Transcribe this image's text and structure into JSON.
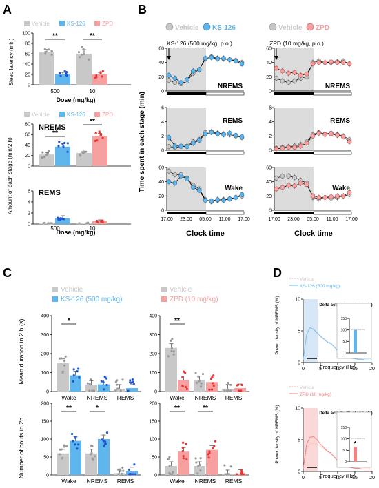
{
  "colors": {
    "vehicle": "#c8c8c8",
    "vehicle_dot": "#9a9a9a",
    "ks126": "#5fb6ec",
    "ks126_dot": "#1f55d6",
    "zpd": "#f7a0a0",
    "zpd_dot": "#ee3333",
    "dark_shade": "#dcdcdc",
    "blue_shade": "#d6e8f7",
    "red_shade": "#fbd8d8"
  },
  "panels": {
    "A": {
      "label": "A",
      "legend": [
        "Vehicle",
        "KS-126",
        "ZPD"
      ],
      "top": {
        "ylabel": "Sleep latency (min)",
        "xlabel": "Dose (mg/kg)",
        "ticks": [
          "0",
          "20",
          "40",
          "60",
          "80",
          "100"
        ],
        "groups": [
          "500",
          "10"
        ],
        "sig": [
          "**",
          "**"
        ]
      },
      "bottom": {
        "ylabel": "Amount of each stage (min/2 h)",
        "xlabel": "Dose (mg/kg)",
        "nrems_label": "NREMS",
        "rems_label": "REMS",
        "nrems_ticks": [
          "0",
          "20",
          "40",
          "60",
          "80"
        ],
        "rems_ticks": [
          "0",
          "2",
          "4",
          "6"
        ],
        "groups": [
          "500",
          "10"
        ],
        "sig": [
          "**",
          "**"
        ]
      }
    },
    "B": {
      "label": "B",
      "ylabel": "Time spent in each stage (min)",
      "xlabel": "Clock time",
      "legend_left": [
        "Vehicle",
        "KS-126"
      ],
      "legend_right": [
        "Vehicle",
        "ZPD"
      ],
      "title_left": "KS-126 (500 mg/kg, p.o.)",
      "title_right": "ZPD (10 mg/kg, p.o.)",
      "stage_labels": [
        "NREMS",
        "REMS",
        "Wake"
      ],
      "nrems_ticks": [
        "0",
        "20",
        "40",
        "60"
      ],
      "rems_ticks": [
        "0",
        "2",
        "4",
        "6"
      ],
      "wake_ticks": [
        "0",
        "20",
        "40",
        "60"
      ],
      "x_ticks": [
        "17:00",
        "23:00",
        "05:00",
        "11:00",
        "17:00"
      ]
    },
    "C": {
      "label": "C",
      "legend_left": [
        "Vehicle",
        "KS-126 (500 mg/kg)"
      ],
      "legend_right": [
        "Vehicle",
        "ZPD (10 mg/kg)"
      ],
      "top_ylabel": "Mean duration in 2 h (s)",
      "bottom_ylabel": "Number of bouts in 2h",
      "top_ticks": [
        "0",
        "100",
        "200",
        "300",
        "400"
      ],
      "bottom_ticks": [
        "0",
        "50",
        "100",
        "150",
        "200"
      ],
      "categories": [
        "Wake",
        "NREMS",
        "REMS"
      ],
      "sig_top_left": [
        "*"
      ],
      "sig_top_right": [
        "**"
      ],
      "sig_bottom_left": [
        "**",
        "*"
      ],
      "sig_bottom_right": [
        "**",
        "**"
      ]
    },
    "D": {
      "label": "D",
      "legend_top": [
        "Vehicle",
        "KS-126 (500 mg/kg)"
      ],
      "legend_bottom": [
        "Vehicle",
        "ZPD (10 mg/kg)"
      ],
      "ylabel": "Power density of NREMS (%)",
      "xlabel": "Frequency (Hz)",
      "y_ticks": [
        "0",
        "5",
        "10"
      ],
      "x_ticks": [
        "0",
        "5",
        "10",
        "15",
        "20"
      ],
      "inset_title": "Delta activity (% of vehicle)",
      "inset_ticks": [
        "0",
        "50",
        "100",
        "150"
      ],
      "inset_sig": "*"
    }
  },
  "chart_data": [
    {
      "type": "bar",
      "panel": "A-top",
      "ylabel": "Sleep latency (min)",
      "xlabel": "Dose (mg/kg)",
      "categories": [
        "500",
        "10"
      ],
      "ylim": [
        0,
        100
      ],
      "series": [
        {
          "name": "Vehicle",
          "values": [
            63,
            60
          ]
        },
        {
          "name": "KS-126",
          "values": [
            20,
            null
          ]
        },
        {
          "name": "ZPD",
          "values": [
            null,
            20
          ]
        }
      ]
    },
    {
      "type": "bar",
      "panel": "A-bottom-NREMS",
      "ylabel": "Amount of each stage (min/2 h)",
      "categories": [
        "500",
        "10"
      ],
      "ylim": [
        0,
        80
      ],
      "series": [
        {
          "name": "Vehicle",
          "values": [
            22,
            25
          ]
        },
        {
          "name": "KS-126",
          "values": [
            37,
            null
          ]
        },
        {
          "name": "ZPD",
          "values": [
            null,
            57
          ]
        }
      ]
    },
    {
      "type": "bar",
      "panel": "A-bottom-REMS",
      "categories": [
        "500",
        "10"
      ],
      "ylim": [
        0,
        6
      ],
      "series": [
        {
          "name": "Vehicle",
          "values": [
            0.1,
            0.1
          ]
        },
        {
          "name": "KS-126",
          "values": [
            1.0,
            null
          ]
        },
        {
          "name": "ZPD",
          "values": [
            null,
            0.5
          ]
        }
      ]
    },
    {
      "type": "line",
      "panel": "B-left",
      "x": [
        "17:00",
        "19:00",
        "21:00",
        "23:00",
        "01:00",
        "03:00",
        "05:00",
        "07:00",
        "09:00",
        "11:00",
        "13:00",
        "15:00",
        "17:00"
      ],
      "series": [
        {
          "stage": "NREMS",
          "name": "Vehicle",
          "values": [
            15,
            12,
            10,
            14,
            25,
            30,
            45,
            48,
            46,
            45,
            44,
            43,
            40
          ]
        },
        {
          "stage": "NREMS",
          "name": "KS-126",
          "values": [
            22,
            18,
            12,
            16,
            28,
            30,
            46,
            47,
            45,
            46,
            44,
            42,
            38
          ]
        },
        {
          "stage": "REMS",
          "name": "Vehicle",
          "values": [
            0.5,
            0.4,
            0.5,
            0.6,
            1.2,
            1.5,
            2.5,
            2.6,
            2.4,
            2.3,
            2.2,
            2.0,
            1.8
          ]
        },
        {
          "stage": "REMS",
          "name": "KS-126",
          "values": [
            1.8,
            0.6,
            0.6,
            0.5,
            1.0,
            1.4,
            2.3,
            2.5,
            2.3,
            2.2,
            2.4,
            2.1,
            1.9
          ]
        },
        {
          "stage": "Wake",
          "name": "Vehicle",
          "values": [
            55,
            50,
            50,
            45,
            35,
            30,
            15,
            12,
            14,
            15,
            16,
            18,
            20
          ]
        },
        {
          "stage": "Wake",
          "name": "KS-126",
          "values": [
            40,
            38,
            48,
            44,
            32,
            28,
            14,
            13,
            15,
            14,
            16,
            18,
            22
          ]
        }
      ]
    },
    {
      "type": "line",
      "panel": "B-right",
      "x": [
        "17:00",
        "19:00",
        "21:00",
        "23:00",
        "01:00",
        "03:00",
        "05:00",
        "07:00",
        "09:00",
        "11:00",
        "13:00",
        "15:00",
        "17:00"
      ],
      "series": [
        {
          "stage": "NREMS",
          "name": "Vehicle",
          "values": [
            18,
            14,
            12,
            14,
            18,
            20,
            40,
            42,
            40,
            40,
            41,
            42,
            38
          ]
        },
        {
          "stage": "NREMS",
          "name": "ZPD",
          "values": [
            32,
            28,
            25,
            26,
            22,
            24,
            38,
            40,
            40,
            41,
            40,
            40,
            38
          ]
        },
        {
          "stage": "REMS",
          "name": "Vehicle",
          "values": [
            0.3,
            0.4,
            0.5,
            0.6,
            0.8,
            1.2,
            2.2,
            2.5,
            2.3,
            2.4,
            2.2,
            2.0,
            1.5
          ]
        },
        {
          "stage": "REMS",
          "name": "ZPD",
          "values": [
            0.2,
            0.3,
            0.4,
            0.4,
            0.6,
            1.0,
            2.0,
            2.4,
            2.2,
            2.3,
            2.1,
            1.9,
            1.2
          ]
        },
        {
          "stage": "Wake",
          "name": "Vehicle",
          "values": [
            45,
            48,
            48,
            46,
            42,
            38,
            18,
            16,
            18,
            17,
            18,
            20,
            22
          ]
        },
        {
          "stage": "Wake",
          "name": "ZPD",
          "values": [
            30,
            32,
            35,
            34,
            38,
            36,
            20,
            18,
            18,
            19,
            20,
            20,
            25
          ]
        }
      ]
    },
    {
      "type": "bar",
      "panel": "C-top-left",
      "ylabel": "Mean duration in 2 h (s)",
      "categories": [
        "Wake",
        "NREMS",
        "REMS"
      ],
      "ylim": [
        0,
        400
      ],
      "series": [
        {
          "name": "Vehicle",
          "values": [
            150,
            35,
            15
          ]
        },
        {
          "name": "KS-126 (500 mg/kg)",
          "values": [
            85,
            38,
            18
          ]
        }
      ]
    },
    {
      "type": "bar",
      "panel": "C-top-right",
      "categories": [
        "Wake",
        "NREMS",
        "REMS"
      ],
      "ylim": [
        0,
        400
      ],
      "series": [
        {
          "name": "Vehicle",
          "values": [
            230,
            60,
            15
          ]
        },
        {
          "name": "ZPD (10 mg/kg)",
          "values": [
            60,
            50,
            18
          ]
        }
      ]
    },
    {
      "type": "bar",
      "panel": "C-bottom-left",
      "ylabel": "Number of bouts in 2h",
      "categories": [
        "Wake",
        "NREMS",
        "REMS"
      ],
      "ylim": [
        0,
        200
      ],
      "series": [
        {
          "name": "Vehicle",
          "values": [
            60,
            60,
            5
          ]
        },
        {
          "name": "KS-126 (500 mg/kg)",
          "values": [
            95,
            100,
            10
          ]
        }
      ]
    },
    {
      "type": "bar",
      "panel": "C-bottom-right",
      "categories": [
        "Wake",
        "NREMS",
        "REMS"
      ],
      "ylim": [
        0,
        200
      ],
      "series": [
        {
          "name": "Vehicle",
          "values": [
            25,
            25,
            2
          ]
        },
        {
          "name": "ZPD (10 mg/kg)",
          "values": [
            65,
            70,
            3
          ]
        }
      ]
    },
    {
      "type": "line",
      "panel": "D-top",
      "xlabel": "Frequency (Hz)",
      "ylabel": "Power density of NREMS (%)",
      "x": [
        0,
        1,
        2,
        3,
        4,
        5,
        6,
        7,
        8,
        9,
        10,
        11,
        12,
        13,
        14,
        15,
        16,
        17,
        18,
        19,
        20
      ],
      "xlim": [
        0,
        20
      ],
      "ylim": [
        0,
        10
      ],
      "series": [
        {
          "name": "Vehicle",
          "values": [
            0.5,
            4.5,
            5.6,
            5.3,
            4.8,
            4.2,
            3.8,
            3.3,
            3.1,
            2.6,
            1.8,
            1.2,
            0.9,
            0.8,
            0.7,
            0.6,
            0.5,
            0.5,
            0.4,
            0.4,
            0.4
          ]
        },
        {
          "name": "KS-126 (500 mg/kg)",
          "values": [
            0.5,
            4.4,
            5.5,
            5.2,
            4.7,
            4.1,
            3.7,
            3.2,
            3.0,
            2.5,
            1.8,
            1.2,
            0.9,
            0.8,
            0.7,
            0.6,
            0.5,
            0.5,
            0.4,
            0.4,
            0.4
          ]
        }
      ],
      "inset": {
        "ylim": [
          0,
          150
        ],
        "value": 100
      }
    },
    {
      "type": "line",
      "panel": "D-bottom",
      "xlabel": "Frequency (Hz)",
      "ylabel": "Power density of NREMS (%)",
      "x": [
        0,
        1,
        2,
        3,
        4,
        5,
        6,
        7,
        8,
        9,
        10,
        11,
        12,
        13,
        14,
        15,
        16,
        17,
        18,
        19,
        20
      ],
      "xlim": [
        0,
        20
      ],
      "ylim": [
        0,
        10
      ],
      "series": [
        {
          "name": "Vehicle",
          "values": [
            0.5,
            3.5,
            4.4,
            4.5,
            4.3,
            4.0,
            3.6,
            3.2,
            2.9,
            2.4,
            1.7,
            1.1,
            0.8,
            0.7,
            0.6,
            0.5,
            0.5,
            0.4,
            0.4,
            0.4,
            0.4
          ]
        },
        {
          "name": "ZPD (10 mg/kg)",
          "values": [
            0.5,
            4.3,
            5.4,
            5.5,
            5.0,
            4.3,
            3.8,
            3.2,
            2.9,
            2.3,
            1.6,
            1.0,
            0.8,
            0.7,
            0.6,
            0.5,
            0.5,
            0.4,
            0.4,
            0.4,
            0.4
          ]
        }
      ],
      "inset": {
        "ylim": [
          0,
          150
        ],
        "value": 65
      }
    }
  ]
}
